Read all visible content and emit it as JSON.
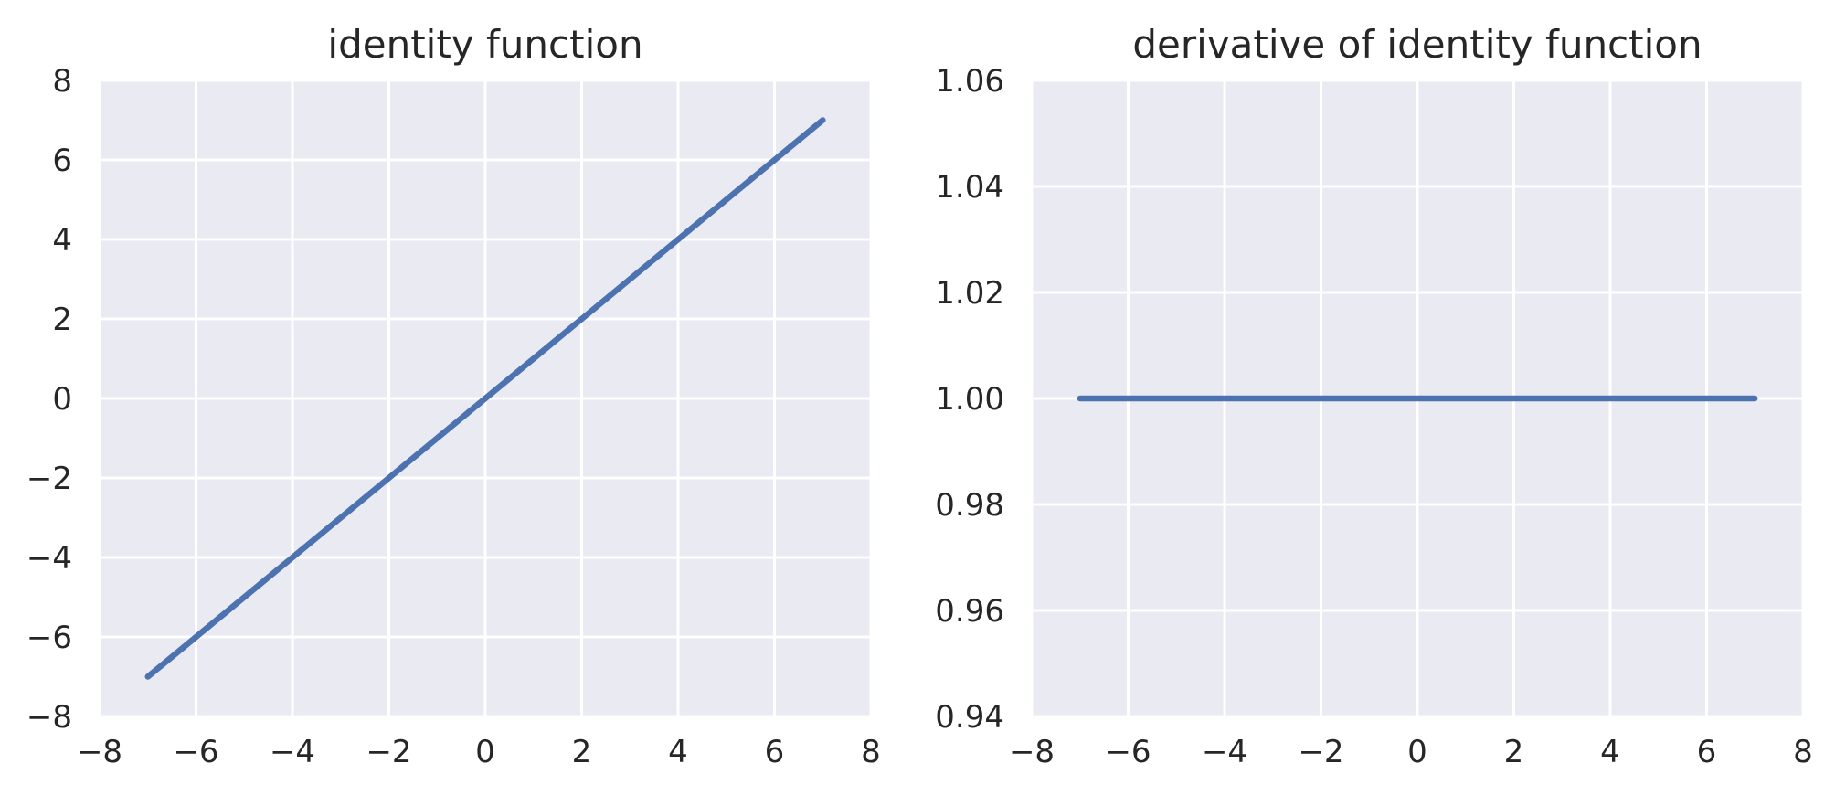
{
  "colors": {
    "panel_bg": "#eaeaf2",
    "grid": "#ffffff",
    "line": "#4c72b0",
    "text": "#262626"
  },
  "chart_data": [
    {
      "type": "line",
      "title": "identity function",
      "xlabel": "",
      "ylabel": "",
      "xlim": [
        -8,
        8
      ],
      "ylim": [
        -8,
        8
      ],
      "grid": true,
      "xticks": [
        -8,
        -6,
        -4,
        -2,
        0,
        2,
        4,
        6,
        8
      ],
      "yticks": [
        -8,
        -6,
        -4,
        -2,
        0,
        2,
        4,
        6,
        8
      ],
      "series": [
        {
          "x": [
            -7,
            7
          ],
          "y": [
            -7,
            7
          ]
        }
      ]
    },
    {
      "type": "line",
      "title": "derivative of identity function",
      "xlabel": "",
      "ylabel": "",
      "xlim": [
        -8,
        8
      ],
      "ylim": [
        0.94,
        1.06
      ],
      "grid": true,
      "xticks": [
        -8,
        -6,
        -4,
        -2,
        0,
        2,
        4,
        6,
        8
      ],
      "yticks": [
        0.94,
        0.96,
        0.98,
        1.0,
        1.02,
        1.04,
        1.06
      ],
      "ytick_decimals": 2,
      "series": [
        {
          "x": [
            -7,
            7
          ],
          "y": [
            1,
            1
          ]
        }
      ]
    }
  ]
}
